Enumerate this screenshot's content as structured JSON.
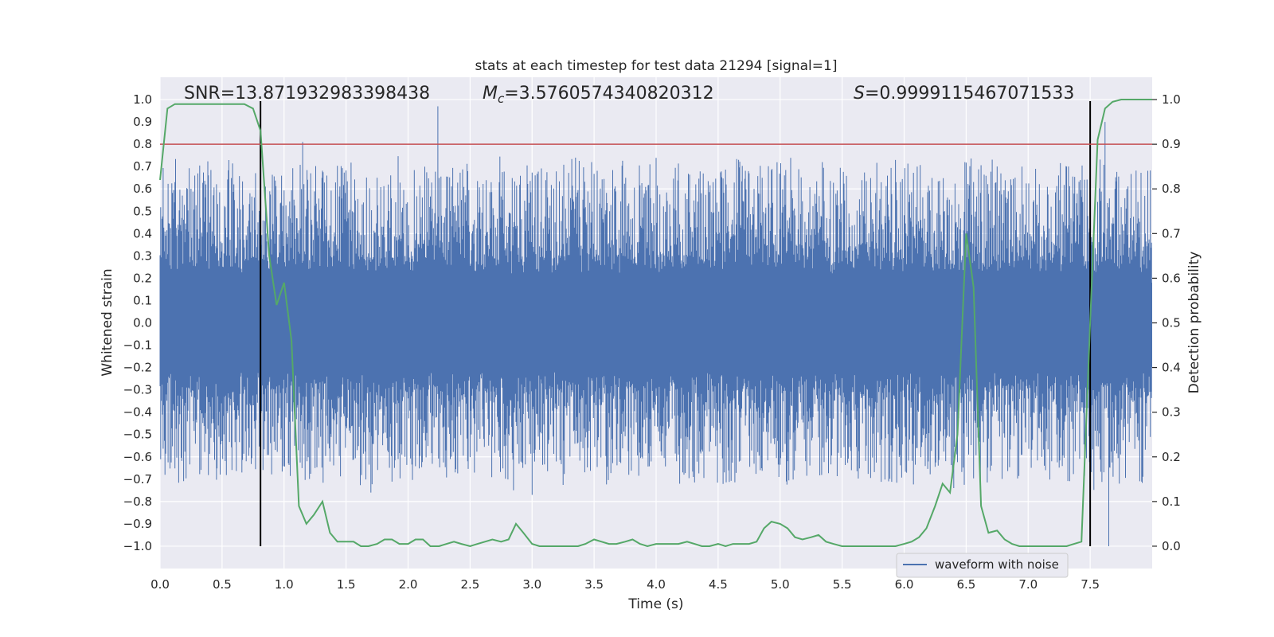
{
  "chart_data": {
    "type": "line",
    "title": "stats at each timestep for test data 21294 [signal=1]",
    "xlabel": "Time (s)",
    "ylabel": "Whitened strain",
    "y2label": "Detection probability",
    "xlim": [
      0.0,
      8.0
    ],
    "ylim": [
      -1.1,
      1.1
    ],
    "y2lim": [
      -0.05,
      1.05
    ],
    "x_ticks": [
      "0.0",
      "0.5",
      "1.0",
      "1.5",
      "2.0",
      "2.5",
      "3.0",
      "3.5",
      "4.0",
      "4.5",
      "5.0",
      "5.5",
      "6.0",
      "6.5",
      "7.0",
      "7.5"
    ],
    "y_ticks": [
      "1.0",
      "0.9",
      "0.8",
      "0.7",
      "0.6",
      "0.5",
      "0.4",
      "0.3",
      "0.2",
      "0.1",
      "0.0",
      "-0.1",
      "-0.2",
      "-0.3",
      "-0.4",
      "-0.5",
      "-0.6",
      "-0.7",
      "-0.8",
      "-0.9",
      "-1.0"
    ],
    "y2_ticks": [
      "1.0",
      "0.9",
      "0.8",
      "0.7",
      "0.6",
      "0.5",
      "0.4",
      "0.3",
      "0.2",
      "0.1",
      "0.0"
    ],
    "grid": true,
    "legend_position": "lower-right",
    "annotations": {
      "snr": "SNR=13.871932983398438",
      "mc_symbol": "M",
      "mc_sub": "c",
      "mc_value": "=3.5760574340820312",
      "s_symbol": "S",
      "s_value": "=0.9999115467071533"
    },
    "threshold": {
      "y2": 0.9,
      "color": "#c44e52"
    },
    "vlines": {
      "x": [
        0.81,
        7.5
      ],
      "y_range": [
        -1.0,
        1.0
      ],
      "color": "#000000"
    },
    "series": [
      {
        "name": "waveform with noise",
        "axis": "left",
        "color": "#4c72b0",
        "description_values": {
          "core_band_y": [
            -0.2,
            0.18
          ],
          "typical_peak_abs": 0.45,
          "extreme_peaks": [
            {
              "x": 0.18,
              "y": 0.57
            },
            {
              "x": 0.37,
              "y": 0.62
            },
            {
              "x": 0.66,
              "y": -0.67
            },
            {
              "x": 0.85,
              "y": 0.61
            },
            {
              "x": 1.15,
              "y": 0.81
            },
            {
              "x": 1.25,
              "y": -0.65
            },
            {
              "x": 1.7,
              "y": -0.76
            },
            {
              "x": 1.75,
              "y": 0.65
            },
            {
              "x": 2.24,
              "y": 0.97
            },
            {
              "x": 2.85,
              "y": -0.75
            },
            {
              "x": 3.0,
              "y": -0.77
            },
            {
              "x": 3.35,
              "y": 0.74
            },
            {
              "x": 3.95,
              "y": 0.71
            },
            {
              "x": 4.3,
              "y": -0.69
            },
            {
              "x": 4.75,
              "y": 0.67
            },
            {
              "x": 5.05,
              "y": -0.71
            },
            {
              "x": 6.4,
              "y": -0.74
            },
            {
              "x": 6.95,
              "y": 0.7
            },
            {
              "x": 7.62,
              "y": 0.9
            },
            {
              "x": 7.65,
              "y": -1.0
            }
          ]
        }
      },
      {
        "name": "",
        "axis": "right",
        "color": "#55a868",
        "x": [
          0.0,
          0.06,
          0.12,
          0.2,
          0.3,
          0.4,
          0.5,
          0.6,
          0.68,
          0.75,
          0.81,
          0.88,
          0.94,
          1.0,
          1.06,
          1.12,
          1.18,
          1.24,
          1.31,
          1.37,
          1.43,
          1.5,
          1.56,
          1.62,
          1.68,
          1.75,
          1.81,
          1.87,
          1.93,
          2.0,
          2.06,
          2.12,
          2.18,
          2.25,
          2.31,
          2.37,
          2.43,
          2.5,
          2.56,
          2.62,
          2.68,
          2.75,
          2.81,
          2.87,
          2.93,
          3.0,
          3.06,
          3.12,
          3.18,
          3.25,
          3.31,
          3.37,
          3.43,
          3.5,
          3.56,
          3.62,
          3.68,
          3.75,
          3.81,
          3.87,
          3.93,
          4.0,
          4.06,
          4.12,
          4.18,
          4.25,
          4.31,
          4.37,
          4.43,
          4.5,
          4.56,
          4.62,
          4.68,
          4.75,
          4.81,
          4.87,
          4.93,
          5.0,
          5.06,
          5.12,
          5.18,
          5.25,
          5.31,
          5.37,
          5.43,
          5.5,
          5.56,
          5.62,
          5.68,
          5.75,
          5.81,
          5.87,
          5.93,
          6.0,
          6.06,
          6.12,
          6.18,
          6.25,
          6.31,
          6.37,
          6.43,
          6.5,
          6.56,
          6.62,
          6.68,
          6.75,
          6.81,
          6.87,
          6.93,
          7.0,
          7.06,
          7.12,
          7.18,
          7.25,
          7.31,
          7.37,
          7.43,
          7.5,
          7.56,
          7.62,
          7.68,
          7.75,
          7.8,
          7.9,
          8.0
        ],
        "y": [
          0.82,
          0.98,
          0.99,
          0.99,
          0.99,
          0.99,
          0.99,
          0.99,
          0.99,
          0.98,
          0.93,
          0.65,
          0.54,
          0.59,
          0.46,
          0.09,
          0.05,
          0.07,
          0.1,
          0.03,
          0.01,
          0.01,
          0.01,
          0.0,
          0.0,
          0.005,
          0.015,
          0.015,
          0.005,
          0.005,
          0.015,
          0.015,
          0.0,
          0.0,
          0.005,
          0.01,
          0.005,
          0.0,
          0.005,
          0.01,
          0.015,
          0.01,
          0.015,
          0.05,
          0.03,
          0.005,
          0.0,
          0.0,
          0.0,
          0.0,
          0.0,
          0.0,
          0.005,
          0.015,
          0.01,
          0.005,
          0.005,
          0.01,
          0.015,
          0.005,
          0.0,
          0.005,
          0.005,
          0.005,
          0.005,
          0.01,
          0.005,
          0.0,
          0.0,
          0.005,
          0.0,
          0.005,
          0.005,
          0.005,
          0.01,
          0.04,
          0.055,
          0.05,
          0.04,
          0.02,
          0.015,
          0.02,
          0.025,
          0.01,
          0.005,
          0.0,
          0.0,
          0.0,
          0.0,
          0.0,
          0.0,
          0.0,
          0.0,
          0.005,
          0.01,
          0.02,
          0.04,
          0.09,
          0.14,
          0.12,
          0.25,
          0.7,
          0.58,
          0.09,
          0.03,
          0.035,
          0.015,
          0.005,
          0.0,
          0.0,
          0.0,
          0.0,
          0.0,
          0.0,
          0.0,
          0.005,
          0.01,
          0.5,
          0.91,
          0.98,
          0.995,
          1.0,
          1.0,
          1.0,
          1.0
        ]
      }
    ]
  }
}
